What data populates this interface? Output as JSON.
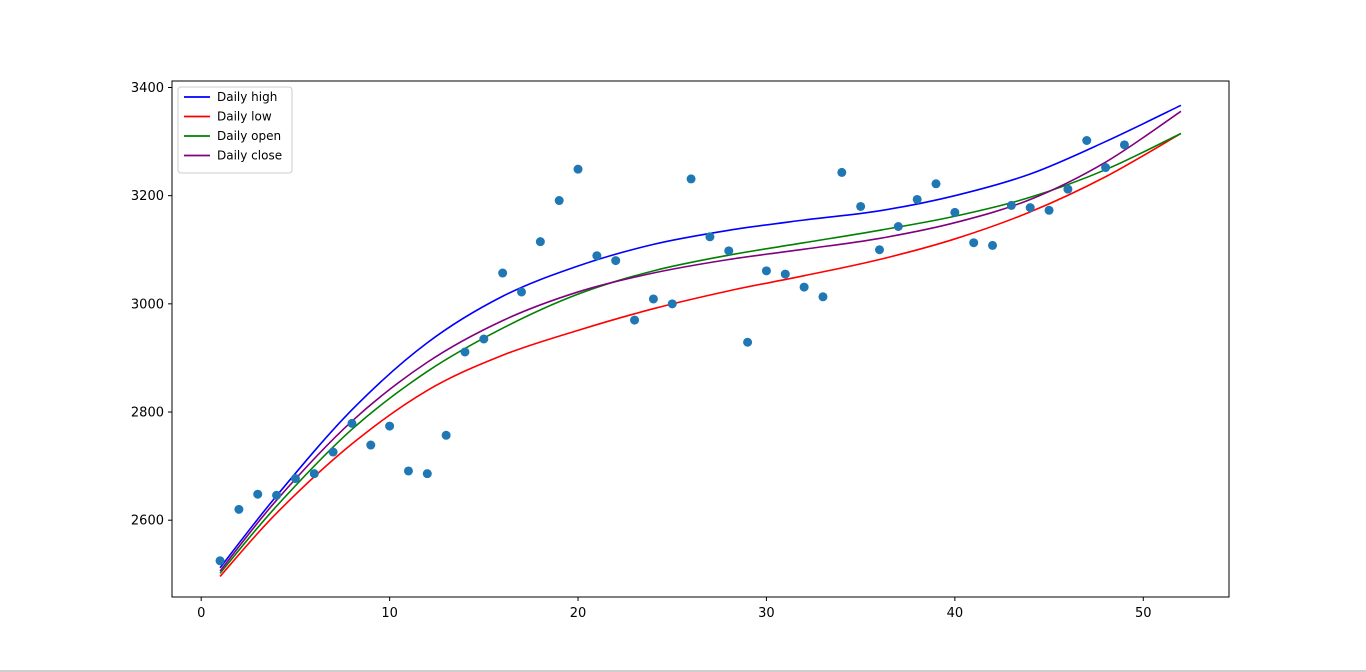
{
  "chart_data": {
    "type": "scatter",
    "title": "",
    "xlabel": "",
    "ylabel": "",
    "xlim": [
      -1.55,
      54.55
    ],
    "ylim": [
      2458,
      3412
    ],
    "grid": false,
    "legend_placement": "top-left",
    "x_ticks": [
      0,
      10,
      20,
      30,
      40,
      50
    ],
    "y_ticks": [
      2600,
      2800,
      3000,
      3200,
      3400
    ],
    "points": {
      "color": "#1f77b4",
      "x": [
        1,
        2,
        3,
        4,
        5,
        6,
        7,
        8,
        9,
        10,
        11,
        12,
        13,
        14,
        15,
        16,
        17,
        18,
        19,
        20,
        21,
        22,
        23,
        24,
        25,
        26,
        27,
        28,
        29,
        30,
        31,
        32,
        33,
        34,
        35,
        36,
        37,
        38,
        39,
        40,
        41,
        42,
        43,
        44,
        45,
        46,
        47,
        48,
        49
      ],
      "y": [
        2525,
        2620,
        2648,
        2646,
        2677,
        2686,
        2726,
        2779,
        2739,
        2774,
        2691,
        2686,
        2757,
        2911,
        2935,
        3057,
        3022,
        3115,
        3191,
        3249,
        3089,
        3080,
        2970,
        3009,
        3000,
        3231,
        3124,
        3098,
        2929,
        3061,
        3055,
        3031,
        3013,
        3243,
        3180,
        3100,
        3143,
        3193,
        3222,
        3169,
        3113,
        3108,
        3182,
        3178,
        3173,
        3212,
        3302,
        3252,
        3294
      ]
    },
    "series": [
      {
        "name": "Daily high",
        "color": "#0000ff",
        "x": [
          1,
          4,
          8,
          12,
          16,
          20,
          24,
          28,
          32,
          36,
          40,
          44,
          48,
          52
        ],
        "y": [
          2512,
          2645,
          2804,
          2928,
          3014,
          3070,
          3110,
          3136,
          3155,
          3172,
          3200,
          3240,
          3300,
          3367
        ]
      },
      {
        "name": "Daily low",
        "color": "#ff0000",
        "x": [
          1,
          4,
          8,
          12,
          16,
          20,
          24,
          28,
          32,
          36,
          40,
          44,
          48,
          52
        ],
        "y": [
          2496,
          2613,
          2741,
          2840,
          2905,
          2951,
          2991,
          3024,
          3052,
          3082,
          3120,
          3170,
          3235,
          3315
        ]
      },
      {
        "name": "Daily open",
        "color": "#008000",
        "x": [
          1,
          4,
          8,
          12,
          16,
          20,
          24,
          28,
          32,
          36,
          40,
          44,
          48,
          52
        ],
        "y": [
          2502,
          2626,
          2768,
          2875,
          2955,
          3018,
          3061,
          3090,
          3113,
          3136,
          3162,
          3197,
          3248,
          3315
        ]
      },
      {
        "name": "Daily close",
        "color": "#800080",
        "x": [
          1,
          4,
          8,
          12,
          16,
          20,
          24,
          28,
          32,
          36,
          40,
          44,
          48,
          52
        ],
        "y": [
          2506,
          2637,
          2783,
          2892,
          2969,
          3022,
          3057,
          3082,
          3101,
          3121,
          3150,
          3193,
          3262,
          3356
        ]
      }
    ]
  }
}
